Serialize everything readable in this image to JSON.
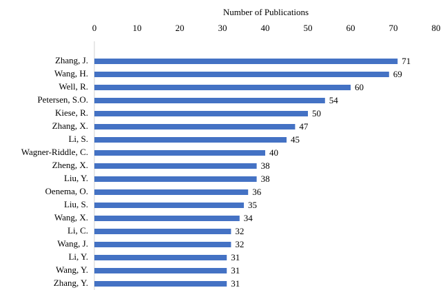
{
  "chart_data": {
    "type": "barh",
    "x_axis_label": "Number of Publications",
    "categories": [
      "Zhang, J.",
      "Wang, H.",
      "Well, R.",
      "Petersen, S.O.",
      "Kiese, R.",
      "Zhang, X.",
      "Li, S.",
      "Wagner-Riddle, C.",
      "Zheng, X.",
      "Liu, Y.",
      "Oenema, O.",
      "Liu, S.",
      "Wang, X.",
      "Li, C.",
      "Wang, J.",
      "Li, Y.",
      "Wang, Y.",
      "Zhang, Y."
    ],
    "values": [
      71,
      69,
      60,
      54,
      50,
      47,
      45,
      40,
      38,
      38,
      36,
      35,
      34,
      32,
      32,
      31,
      31,
      31
    ],
    "color": "#4472c4",
    "xlim": [
      0,
      80
    ],
    "xticks": [
      0,
      10,
      20,
      30,
      40,
      50,
      60,
      70,
      80
    ],
    "grid": false
  }
}
